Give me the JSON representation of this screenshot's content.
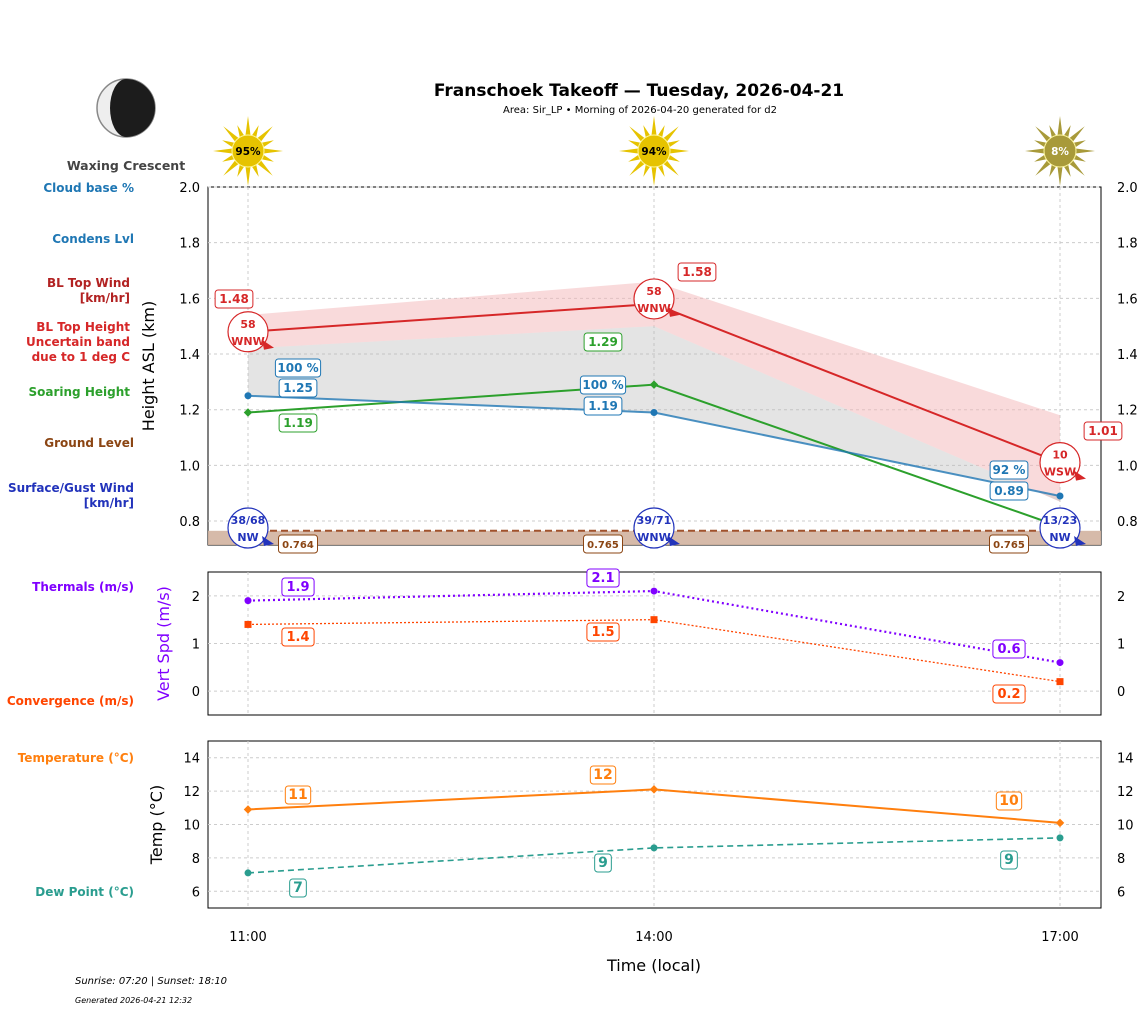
{
  "title": "Franschoek Takeoff — Tuesday, 2026-04-21",
  "subtitle": "Area: Sir_LP • Morning of 2026-04-20 generated for d2",
  "moon_phase": "Waxing Crescent",
  "footer": {
    "sun_times": "Sunrise: 07:20 | Sunset: 18:10",
    "generated": "Generated 2026-04-21 12:32"
  },
  "xlabel": "Time (local)",
  "x_ticks": [
    "11:00",
    "14:00",
    "17:00"
  ],
  "sun_cover": [
    "95%",
    "94%",
    "8%"
  ],
  "legend_labels": {
    "cloud_base": "Cloud base %",
    "condens": "Condens Lvl",
    "bl_wind": "BL Top Wind\n[km/hr]",
    "bl_height": "BL Top Height\nUncertain band\ndue to 1 deg C",
    "soaring": "Soaring Height",
    "ground": "Ground Level",
    "surface_wind": "Surface/Gust Wind\n[km/hr]",
    "thermals": "Thermals (m/s)",
    "convergence": "Convergence (m/s)",
    "temperature": "Temperature (°C)",
    "dewpoint": "Dew Point (°C)"
  },
  "colors": {
    "bl_top": "#d62728",
    "bl_band": "#f4b6b8",
    "grey_band": "#bbbbbb",
    "condens": "#1f77b4",
    "soaring": "#2ca02c",
    "ground": "#8b4513",
    "surface_wind": "#2233bb",
    "thermals": "#8000ff",
    "convergence": "#ff4500",
    "temperature": "#ff7f0e",
    "dewpoint": "#2a9d8f",
    "sun": "#e6c300",
    "sun_dim": "#a89a3a"
  },
  "chart_data": [
    {
      "type": "line",
      "ylabel": "Height ASL (km)",
      "ylim": [
        0.714,
        2.0
      ],
      "y_ticks": [
        "0.8",
        "1.0",
        "1.2",
        "1.4",
        "1.6",
        "1.8",
        "2.0"
      ],
      "x": [
        "11:00",
        "14:00",
        "17:00"
      ],
      "grid": true,
      "series": [
        {
          "name": "BL Top Height",
          "values": [
            1.48,
            1.58,
            1.01
          ],
          "labels": [
            "1.48",
            "1.58",
            "1.01"
          ]
        },
        {
          "name": "BL Top Height Uncertain band due to 1 deg C",
          "upper": [
            1.54,
            1.66,
            1.18
          ],
          "lower": [
            1.42,
            1.5,
            0.87
          ]
        },
        {
          "name": "Condens Lvl",
          "values": [
            1.25,
            1.19,
            0.89
          ],
          "labels": [
            "1.25",
            "1.19",
            "0.89"
          ]
        },
        {
          "name": "Cloud base %",
          "labels": [
            "100 %",
            "100 %",
            "92 %"
          ]
        },
        {
          "name": "Soaring Height",
          "values": [
            1.19,
            1.29,
            0.78
          ],
          "labels": [
            "1.19",
            "1.29",
            ""
          ]
        },
        {
          "name": "Ground Level",
          "values": [
            0.764,
            0.765,
            0.765
          ],
          "labels": [
            "0.764",
            "0.765",
            "0.765"
          ]
        },
        {
          "name": "BL Top Wind",
          "speed": [
            "58",
            "58",
            "10"
          ],
          "dir": [
            "WNW",
            "WNW",
            "WSW"
          ]
        },
        {
          "name": "Surface/Gust Wind",
          "speed": [
            "38/68",
            "39/71",
            "13/23"
          ],
          "dir": [
            "NW",
            "WNW",
            "NW"
          ]
        }
      ]
    },
    {
      "type": "line",
      "ylabel": "Vert Spd (m/s)",
      "ylim": [
        -0.5,
        2.5
      ],
      "y_ticks": [
        "0",
        "1",
        "2"
      ],
      "x": [
        "11:00",
        "14:00",
        "17:00"
      ],
      "grid": true,
      "series": [
        {
          "name": "Thermals (m/s)",
          "values": [
            1.9,
            2.1,
            0.6
          ],
          "labels": [
            "1.9",
            "2.1",
            "0.6"
          ]
        },
        {
          "name": "Convergence (m/s)",
          "values": [
            1.4,
            1.5,
            0.2
          ],
          "labels": [
            "1.4",
            "1.5",
            "0.2"
          ]
        }
      ]
    },
    {
      "type": "line",
      "ylabel": "Temp (°C)",
      "ylim": [
        5,
        15
      ],
      "y_ticks": [
        "6",
        "8",
        "10",
        "12",
        "14"
      ],
      "x": [
        "11:00",
        "14:00",
        "17:00"
      ],
      "grid": true,
      "series": [
        {
          "name": "Temperature (°C)",
          "values": [
            10.9,
            12.1,
            10.1
          ],
          "labels": [
            "11",
            "12",
            "10"
          ]
        },
        {
          "name": "Dew Point (°C)",
          "values": [
            7.1,
            8.6,
            9.2
          ],
          "labels": [
            "7",
            "9",
            "9"
          ]
        }
      ]
    }
  ]
}
